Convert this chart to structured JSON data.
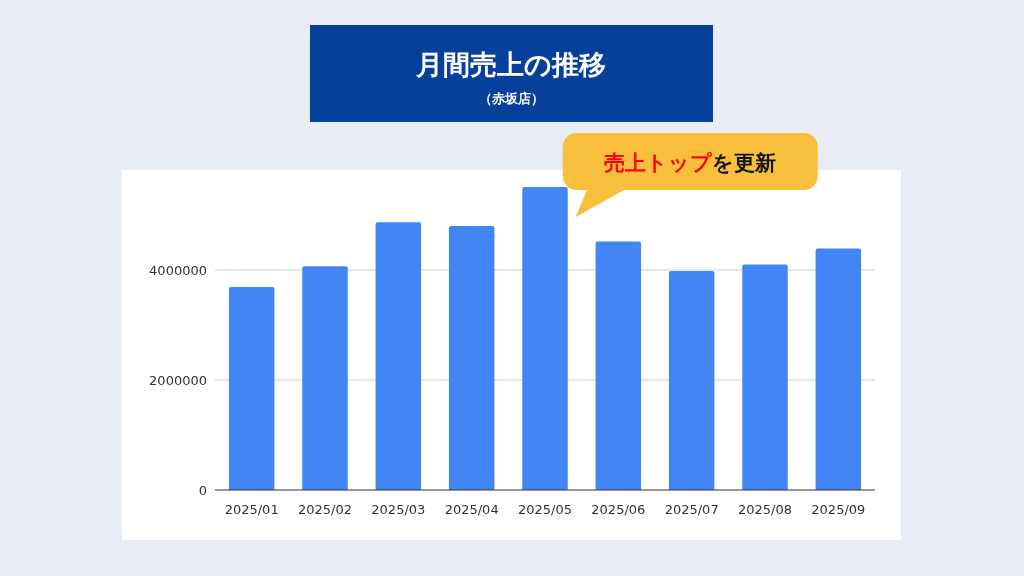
{
  "chart_data": {
    "type": "bar",
    "title": "月間売上の推移",
    "subtitle": "（赤坂店）",
    "categories": [
      "2025/01",
      "2025/02",
      "2025/03",
      "2025/04",
      "2025/05",
      "2025/06",
      "2025/07",
      "2025/08",
      "2025/09"
    ],
    "values": [
      3690000,
      4070000,
      4870000,
      4800000,
      5510000,
      4520000,
      3980000,
      4100000,
      4390000
    ],
    "color": "#4285f4",
    "ylim": [
      0,
      5800000
    ],
    "yticks": [
      0,
      2000000,
      4000000
    ],
    "grid": "y",
    "annotations": [
      {
        "text": "**売上トップ**を更新",
        "x": "2025/05",
        "y": 5510000
      }
    ]
  }
}
